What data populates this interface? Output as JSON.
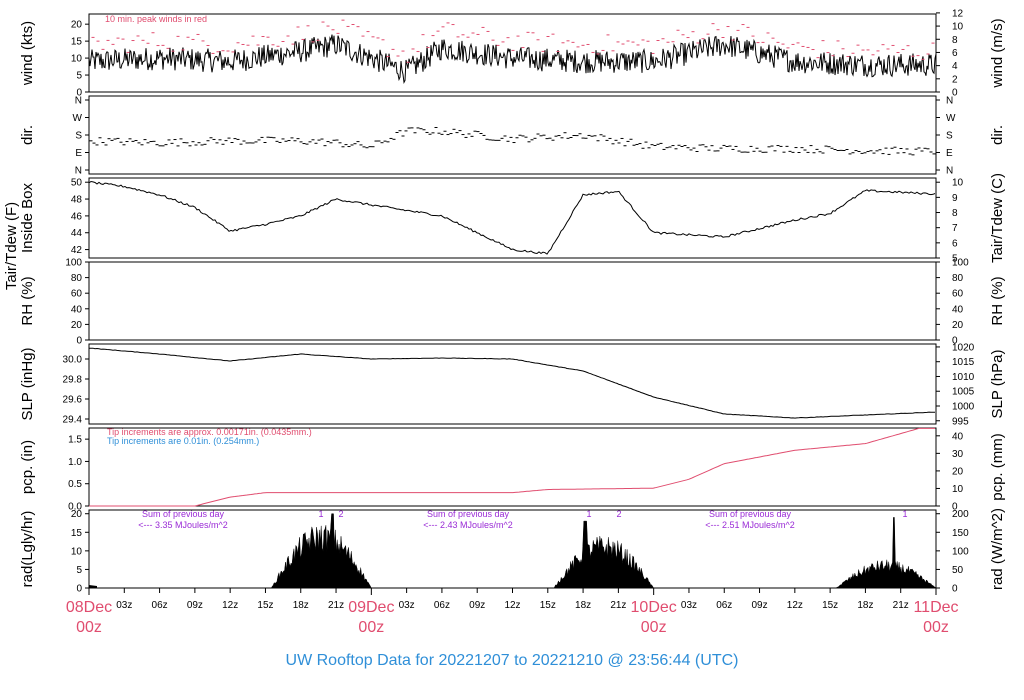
{
  "footer": {
    "title": "UW Rooftop Data for 20221207  to  20221210 @ 23:56:44  (UTC)"
  },
  "colors": {
    "red": "#e04d6f",
    "blue": "#2f8fd8",
    "purple": "#9a2bd6",
    "black": "#000000"
  },
  "time_axis": {
    "ticks": [
      "03z",
      "06z",
      "09z",
      "12z",
      "15z",
      "18z",
      "21z",
      "03z",
      "06z",
      "09z",
      "12z",
      "15z",
      "18z",
      "21z",
      "03z",
      "06z",
      "09z",
      "12z",
      "15z",
      "18z",
      "21z"
    ],
    "days": [
      {
        "d": "08Dec",
        "h": "00z"
      },
      {
        "d": "09Dec",
        "h": "00z"
      },
      {
        "d": "10Dec",
        "h": "00z"
      },
      {
        "d": "11Dec",
        "h": "00z"
      }
    ]
  },
  "chart_data": [
    {
      "type": "line",
      "id": "wind",
      "ylabel_left": "wind (kts)",
      "ylabel_right": "wind (m/s)",
      "ylim": [
        0,
        23
      ],
      "yticks": [
        "0",
        "5",
        "10",
        "15",
        "20"
      ],
      "y2ticks": [
        "0",
        "2",
        "4",
        "6",
        "8",
        "10",
        "12"
      ],
      "annotation": "10 min. peak winds in red",
      "series": [
        {
          "values_x_hours": [
            0,
            6,
            12,
            18,
            21,
            24,
            27,
            30,
            36,
            42,
            48,
            54,
            60,
            66,
            72
          ],
          "values": [
            9,
            10,
            9,
            12,
            14,
            10,
            6,
            13,
            10,
            9,
            9,
            14,
            9,
            8,
            8
          ]
        },
        {
          "values_x_hours": [
            0,
            6,
            12,
            18,
            21,
            24,
            27,
            30,
            36,
            42,
            48,
            54,
            60,
            66,
            72
          ],
          "values": [
            14,
            15,
            14,
            17,
            19,
            15,
            11,
            18,
            15,
            14,
            14,
            19,
            13,
            12,
            12
          ]
        }
      ]
    },
    {
      "type": "scatter",
      "id": "dir",
      "ylabel_left": "dir.",
      "ylabel_right": "dir.",
      "yticks": [
        "N",
        "E",
        "S",
        "W",
        "N"
      ],
      "series": [
        {
          "values_x_hours": [
            0,
            6,
            12,
            18,
            21,
            24,
            27,
            30,
            36,
            42,
            48,
            54,
            60,
            66,
            72
          ],
          "values_deg": [
            150,
            140,
            150,
            150,
            140,
            120,
            200,
            200,
            160,
            180,
            120,
            110,
            110,
            100,
            95
          ]
        }
      ]
    },
    {
      "type": "line",
      "id": "temp",
      "ylabel_left": "Tair/Tdew (F)",
      "ylabel_left2": "Inside Box",
      "ylabel_right": "Tair/Tdew (C)",
      "ylim": [
        41,
        50.5
      ],
      "yticks": [
        "42",
        "44",
        "46",
        "48",
        "50"
      ],
      "y2ticks": [
        "5",
        "6",
        "7",
        "8",
        "9",
        "10"
      ],
      "series": [
        {
          "values_x_hours": [
            0,
            3,
            6,
            9,
            12,
            15,
            18,
            21,
            24,
            30,
            33,
            36,
            39,
            42,
            45,
            48,
            54,
            60,
            63,
            66,
            72
          ],
          "values": [
            50,
            49.5,
            48.5,
            47,
            44.2,
            45,
            46,
            48,
            47.3,
            46,
            44,
            42,
            41.5,
            48.5,
            48.9,
            44,
            43.5,
            45.5,
            46.3,
            49,
            48.6
          ]
        }
      ]
    },
    {
      "type": "line",
      "id": "rh",
      "ylabel_left": "RH (%)",
      "ylabel_right": "RH (%)",
      "ylim": [
        0,
        100
      ],
      "yticks": [
        "0",
        "20",
        "40",
        "60",
        "80",
        "100"
      ],
      "y2ticks": [
        "0",
        "20",
        "40",
        "60",
        "80",
        "100"
      ],
      "series": []
    },
    {
      "type": "line",
      "id": "slp",
      "ylabel_left": "SLP (inHg)",
      "ylabel_right": "SLP (hPa)",
      "ylim": [
        29.35,
        30.15
      ],
      "yticks": [
        "29.4",
        "29.6",
        "29.8",
        "30.0"
      ],
      "y2ticks": [
        "995",
        "1000",
        "1005",
        "1010",
        "1015",
        "1020"
      ],
      "series": [
        {
          "values_x_hours": [
            0,
            6,
            12,
            18,
            24,
            30,
            36,
            42,
            48,
            54,
            60,
            66,
            72
          ],
          "values": [
            30.11,
            30.05,
            29.98,
            30.05,
            30.0,
            30.01,
            30.0,
            29.88,
            29.62,
            29.45,
            29.41,
            29.44,
            29.47
          ]
        }
      ]
    },
    {
      "type": "area",
      "id": "pcp",
      "ylabel_left": "pcp. (in)",
      "ylabel_right": "pcp. (mm)",
      "ylim": [
        0,
        1.75
      ],
      "yticks": [
        "0.0",
        "0.5",
        "1.0",
        "1.5"
      ],
      "y2ticks": [
        "0",
        "10",
        "20",
        "30",
        "40"
      ],
      "annotations": [
        "Tip increments are approx. 0.00171in. (0.0435mm.)",
        "Tip increments are 0.01in. (0.254mm.)"
      ],
      "series": [
        {
          "values_x_hours": [
            0,
            9,
            12,
            15,
            24,
            36,
            39,
            48,
            51,
            54,
            60,
            66,
            72
          ],
          "values": [
            0,
            0,
            0.2,
            0.3,
            0.3,
            0.3,
            0.37,
            0.4,
            0.6,
            0.95,
            1.25,
            1.4,
            1.85
          ]
        }
      ]
    },
    {
      "type": "area",
      "id": "rad",
      "ylabel_left": "rad(Lgly/hr)",
      "ylabel_right": "rad (W/m^2)",
      "ylim": [
        0,
        21
      ],
      "yticks": [
        "0",
        "5",
        "10",
        "15",
        "20"
      ],
      "y2ticks": [
        "0",
        "50",
        "100",
        "150",
        "200"
      ],
      "annotations": [
        {
          "line1": "Sum of previous day",
          "line2": "<--- 3.35 MJoules/m^2"
        },
        {
          "line1": "Sum of previous day",
          "line2": "<--- 2.43 MJoules/m^2"
        },
        {
          "line1": "Sum of previous day",
          "line2": "<--- 2.51 MJoules/m^2"
        }
      ],
      "markers": [
        "1",
        "2",
        "1",
        "2",
        "1"
      ],
      "series": []
    }
  ]
}
